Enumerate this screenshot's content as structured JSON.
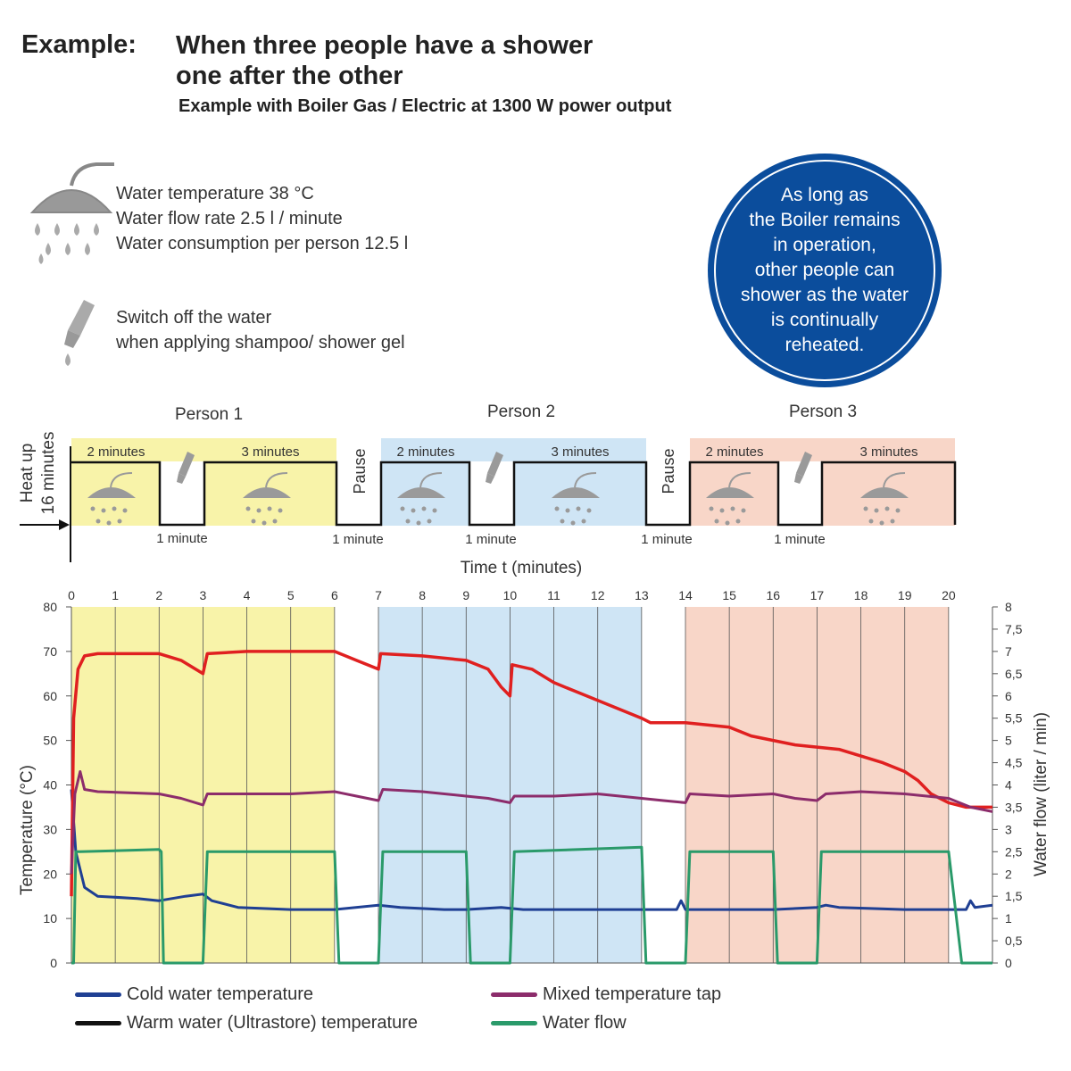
{
  "header": {
    "example_label": "Example:",
    "title_line1": "When three people have a shower",
    "title_line2": "one after the other",
    "subtitle": "Example with Boiler Gas / Electric at 1300 W power output"
  },
  "info": {
    "shower_lines": [
      "Water temperature 38 °C",
      "Water flow rate 2.5 l / minute",
      "Water consumption per person 12.5 l"
    ],
    "shampoo_lines": [
      "Switch off the water",
      "when applying shampoo/ shower gel"
    ]
  },
  "callout": {
    "lines": [
      "As long as",
      "the Boiler remains",
      "in operation,",
      "other people can",
      "shower as the water",
      "is continually",
      "reheated."
    ]
  },
  "schedule": {
    "persons": [
      "Person 1",
      "Person 2",
      "Person 3"
    ],
    "two_min": "2 minutes",
    "three_min": "3 minutes",
    "one_min": "1 minute",
    "pause": "Pause",
    "heat_up_line1": "Heat up",
    "heat_up_line2": "16 minutes",
    "time_axis": "Time t (minutes)"
  },
  "colors": {
    "yellow_band": "#f8f3a9",
    "blue_band": "#cfe5f5",
    "salmon_band": "#f8d6c8",
    "cold": "#1f3f93",
    "warm": "#e02020",
    "mixed": "#8c2c6b",
    "flow": "#2a9a6a",
    "callout": "#0b4d9c"
  },
  "chart_data": {
    "type": "line",
    "xlabel": "",
    "ylabel": "Temperature (°C)",
    "y2label": "Water flow (liter / min)",
    "xlim": [
      0,
      21
    ],
    "ylim": [
      0,
      80
    ],
    "y2lim": [
      0,
      8
    ],
    "x_ticks": [
      "0",
      "1",
      "2",
      "3",
      "4",
      "5",
      "6",
      "7",
      "8",
      "9",
      "10",
      "11",
      "12",
      "13",
      "14",
      "15",
      "16",
      "17",
      "18",
      "19",
      "20"
    ],
    "y_ticks": [
      "0",
      "10",
      "20",
      "30",
      "40",
      "50",
      "60",
      "70",
      "80"
    ],
    "y2_ticks": [
      "0",
      "0,5",
      "1",
      "1,5",
      "2",
      "2,5",
      "3",
      "3,5",
      "4",
      "4,5",
      "5",
      "5,5",
      "6",
      "6,5",
      "7",
      "7,5",
      "8"
    ],
    "bands": [
      {
        "x0": 0,
        "x1": 6,
        "color": "#f8f3a9"
      },
      {
        "x0": 7,
        "x1": 13,
        "color": "#cfe5f5"
      },
      {
        "x0": 14,
        "x1": 20,
        "color": "#f8d6c8"
      }
    ],
    "series": [
      {
        "name": "Cold water temperature",
        "color": "#1f3f93",
        "points": [
          [
            0,
            39
          ],
          [
            0.1,
            25
          ],
          [
            0.3,
            17
          ],
          [
            0.6,
            15
          ],
          [
            1.5,
            14.5
          ],
          [
            2,
            14
          ],
          [
            2.6,
            15
          ],
          [
            3,
            15.5
          ],
          [
            3.2,
            14
          ],
          [
            3.8,
            12.5
          ],
          [
            5,
            12
          ],
          [
            6,
            12
          ],
          [
            7,
            13
          ],
          [
            7.5,
            12.5
          ],
          [
            8.5,
            12
          ],
          [
            9,
            12
          ],
          [
            9.8,
            12.5
          ],
          [
            10.3,
            12
          ],
          [
            12,
            12
          ],
          [
            13,
            12
          ],
          [
            13.8,
            12
          ],
          [
            13.9,
            14
          ],
          [
            14,
            12
          ],
          [
            16,
            12
          ],
          [
            17,
            12.5
          ],
          [
            17.2,
            13
          ],
          [
            17.5,
            12.5
          ],
          [
            19,
            12
          ],
          [
            20.4,
            12
          ],
          [
            20.5,
            14
          ],
          [
            20.6,
            12.5
          ],
          [
            21,
            13
          ]
        ]
      },
      {
        "name": "Warm water (Ultrastore) temperature",
        "color": "#e02020",
        "points": [
          [
            0,
            15
          ],
          [
            0.05,
            55
          ],
          [
            0.15,
            66
          ],
          [
            0.3,
            69
          ],
          [
            0.6,
            69.5
          ],
          [
            2,
            69.5
          ],
          [
            2.5,
            68
          ],
          [
            3,
            65
          ],
          [
            3.1,
            69.5
          ],
          [
            4,
            70
          ],
          [
            6,
            70
          ],
          [
            6.5,
            68
          ],
          [
            7,
            66
          ],
          [
            7.05,
            69.5
          ],
          [
            8,
            69
          ],
          [
            9,
            68
          ],
          [
            9.5,
            66
          ],
          [
            9.8,
            62
          ],
          [
            10,
            60
          ],
          [
            10.05,
            67
          ],
          [
            10.5,
            66
          ],
          [
            11,
            63
          ],
          [
            11.5,
            61
          ],
          [
            12,
            59
          ],
          [
            12.5,
            57
          ],
          [
            13,
            55
          ],
          [
            13.2,
            54
          ],
          [
            14,
            54
          ],
          [
            14.5,
            53.5
          ],
          [
            15,
            53
          ],
          [
            15.5,
            51
          ],
          [
            16,
            50
          ],
          [
            16.5,
            49
          ],
          [
            17,
            48.5
          ],
          [
            17.5,
            48
          ],
          [
            18,
            46.5
          ],
          [
            18.5,
            45
          ],
          [
            19,
            43
          ],
          [
            19.3,
            41
          ],
          [
            19.6,
            38
          ],
          [
            20,
            36
          ],
          [
            20.4,
            35
          ],
          [
            21,
            35
          ]
        ]
      },
      {
        "name": "Mixed temperature tap",
        "color": "#8c2c6b",
        "points": [
          [
            0,
            20
          ],
          [
            0.08,
            38
          ],
          [
            0.2,
            43
          ],
          [
            0.3,
            39
          ],
          [
            0.6,
            38.5
          ],
          [
            2,
            38
          ],
          [
            2.5,
            37
          ],
          [
            3,
            35.5
          ],
          [
            3.1,
            38
          ],
          [
            4,
            38
          ],
          [
            5,
            38
          ],
          [
            6,
            38.5
          ],
          [
            6.5,
            37.5
          ],
          [
            7,
            36.5
          ],
          [
            7.1,
            39
          ],
          [
            8,
            38.5
          ],
          [
            9,
            37.5
          ],
          [
            9.5,
            37
          ],
          [
            10,
            36
          ],
          [
            10.1,
            37.5
          ],
          [
            11,
            37.5
          ],
          [
            12,
            38
          ],
          [
            12.5,
            37.5
          ],
          [
            13,
            37
          ],
          [
            13.5,
            36.5
          ],
          [
            14,
            36
          ],
          [
            14.1,
            38
          ],
          [
            15,
            37.5
          ],
          [
            16,
            38
          ],
          [
            16.5,
            37
          ],
          [
            17,
            36.5
          ],
          [
            17.2,
            38
          ],
          [
            18,
            38.5
          ],
          [
            19,
            38
          ],
          [
            19.5,
            37.5
          ],
          [
            20,
            37
          ],
          [
            20.5,
            35
          ],
          [
            21,
            34
          ]
        ]
      },
      {
        "name": "Water flow",
        "color": "#2a9a6a",
        "points": [
          [
            0,
            0
          ],
          [
            0.05,
            0
          ],
          [
            0.1,
            2.5
          ],
          [
            0.2,
            2.5
          ],
          [
            2,
            2.55
          ],
          [
            2.05,
            2.5
          ],
          [
            2.1,
            0
          ],
          [
            3,
            0
          ],
          [
            3.1,
            2.5
          ],
          [
            6,
            2.5
          ],
          [
            6.1,
            0
          ],
          [
            7,
            0
          ],
          [
            7.1,
            2.5
          ],
          [
            9,
            2.5
          ],
          [
            9.1,
            0
          ],
          [
            10,
            0
          ],
          [
            10.1,
            2.5
          ],
          [
            13,
            2.6
          ],
          [
            13.1,
            0
          ],
          [
            14,
            0
          ],
          [
            14.1,
            2.5
          ],
          [
            16,
            2.5
          ],
          [
            16.1,
            0
          ],
          [
            17,
            0
          ],
          [
            17.1,
            2.5
          ],
          [
            20,
            2.5
          ],
          [
            20.3,
            0
          ],
          [
            21,
            0
          ]
        ]
      }
    ]
  },
  "legend": {
    "cold": "Cold water temperature",
    "mixed": "Mixed temperature tap",
    "warm": "Warm water (Ultrastore) temperature",
    "flow": "Water flow"
  }
}
